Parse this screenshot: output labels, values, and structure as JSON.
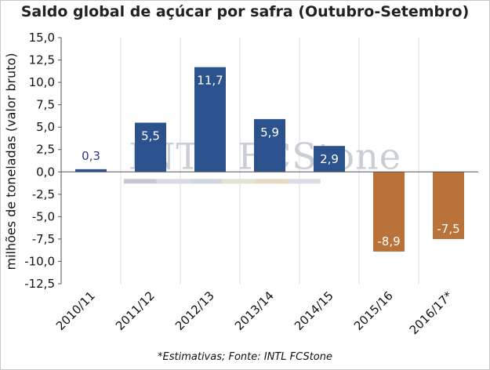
{
  "chart_data": {
    "type": "bar",
    "title": "Saldo global de açúcar por safra (Outubro-Setembro)",
    "ylabel": "milhões de toneladas (valor bruto)",
    "xlabel": "",
    "categories": [
      "2010/11",
      "2011/12",
      "2012/13",
      "2013/14",
      "2014/15",
      "2015/16",
      "2016/17*"
    ],
    "values": [
      0.3,
      5.5,
      11.7,
      5.9,
      2.9,
      -8.9,
      -7.5
    ],
    "data_labels": [
      "0,3",
      "5,5",
      "11,7",
      "5,9",
      "2,9",
      "-8,9",
      "-7,5"
    ],
    "ylim": [
      -12.5,
      15.0
    ],
    "yticks": [
      15.0,
      12.5,
      10.0,
      7.5,
      5.0,
      2.5,
      0.0,
      -2.5,
      -5.0,
      -7.5,
      -10.0,
      -12.5
    ],
    "ytick_labels": [
      "15,0",
      "12,5",
      "10,0",
      "7,5",
      "5,0",
      "2,5",
      "0,0",
      "-2,5",
      "-5,0",
      "-7,5",
      "-10,0",
      "-12,5"
    ],
    "grid": "vertical",
    "colors": {
      "positive": "#2c528e",
      "negative": "#b8723a",
      "small_label": "#2a3a8c"
    },
    "footnote": "*Estimativas; Fonte: INTL FCStone",
    "watermark": "INTL FCStone"
  }
}
